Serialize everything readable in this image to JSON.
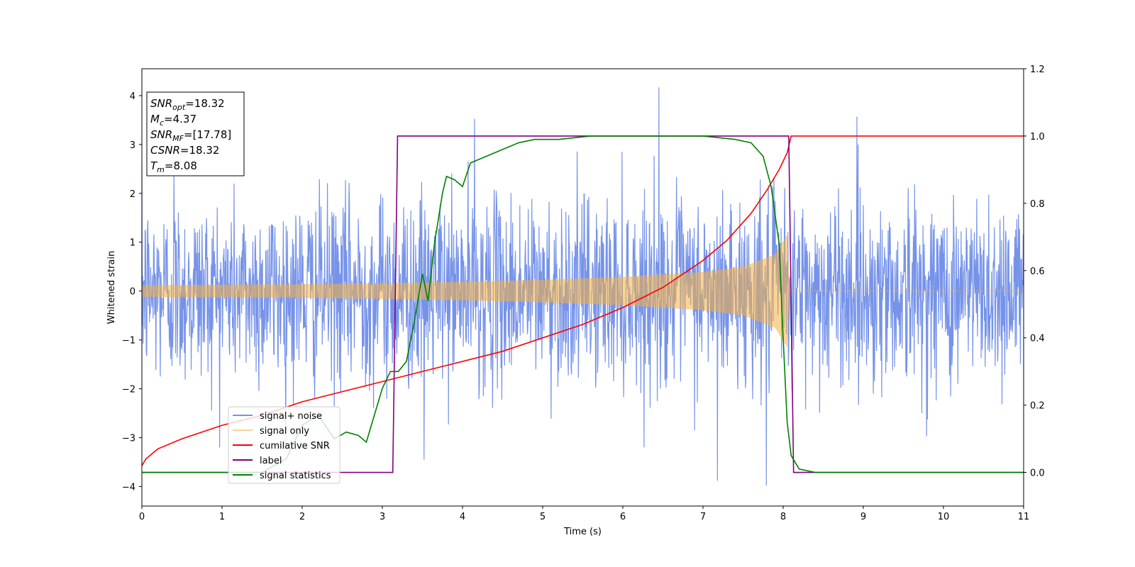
{
  "chart_data": {
    "type": "line",
    "title": "",
    "xlabel": "Time (s)",
    "ylabel": "Whitened strain",
    "ylabel_right": "",
    "xlim": [
      0,
      11
    ],
    "ylim": [
      -4.4,
      4.55
    ],
    "ylim_right": [
      -0.1,
      1.2
    ],
    "x_ticks": [
      0,
      1,
      2,
      3,
      4,
      5,
      6,
      7,
      8,
      9,
      10,
      11
    ],
    "y_ticks": [
      -4,
      -3,
      -2,
      -1,
      0,
      1,
      2,
      3,
      4
    ],
    "y_ticks_right": [
      0.0,
      0.2,
      0.4,
      0.6,
      0.8,
      1.0,
      1.2
    ],
    "x_tick_labels": [
      "0",
      "1",
      "2",
      "3",
      "4",
      "5",
      "6",
      "7",
      "8",
      "9",
      "10",
      "11"
    ],
    "y_tick_labels": [
      "−4",
      "−3",
      "−2",
      "−1",
      "0",
      "1",
      "2",
      "3",
      "4"
    ],
    "y_tick_labels_right": [
      "0.0",
      "0.2",
      "0.4",
      "0.6",
      "0.8",
      "1.0",
      "1.2"
    ],
    "grid": false,
    "legend_position": "lower-left",
    "annotation": {
      "lines": [
        {
          "base": "SNR",
          "sub": "opt",
          "rest": "=18.32"
        },
        {
          "base": "M",
          "sub": "c",
          "rest": "=4.37"
        },
        {
          "base": "SNR",
          "sub": "MF",
          "rest": "=[17.78]"
        },
        {
          "base": "CSNR",
          "sub": "",
          "rest": "=18.32"
        },
        {
          "base": "T",
          "sub": "m",
          "rest": "=8.08"
        }
      ]
    },
    "series": [
      {
        "name": "signal+ noise",
        "axis": "left",
        "color": "#4169e1",
        "x_range": [
          0,
          11
        ],
        "samples": 2200,
        "noise_std": 0.95,
        "peaks": [
          [
            0.4,
            2.4
          ],
          [
            4.15,
            3.52
          ],
          [
            6.45,
            4.17
          ],
          [
            8.92,
            3.57
          ],
          [
            7.18,
            -3.88
          ],
          [
            7.79,
            -3.98
          ],
          [
            3.52,
            -3.45
          ]
        ]
      },
      {
        "name": "signal only",
        "axis": "left",
        "color": "#f5b041",
        "x_range": [
          0,
          11
        ],
        "envelope": [
          [
            0,
            0.12
          ],
          [
            1,
            0.13
          ],
          [
            2,
            0.14
          ],
          [
            3,
            0.16
          ],
          [
            4,
            0.19
          ],
          [
            5,
            0.23
          ],
          [
            6,
            0.29
          ],
          [
            7,
            0.39
          ],
          [
            7.5,
            0.5
          ],
          [
            7.9,
            0.75
          ],
          [
            8.05,
            1.15
          ],
          [
            8.08,
            0.0
          ],
          [
            11,
            0.0
          ]
        ]
      },
      {
        "name": "cumilative SNR",
        "axis": "right",
        "color": "#ff0000",
        "x": [
          0,
          0.05,
          0.2,
          0.5,
          1,
          1.5,
          2,
          2.5,
          3,
          3.5,
          4,
          4.5,
          5,
          5.5,
          6,
          6.5,
          7,
          7.3,
          7.6,
          7.8,
          7.95,
          8.05,
          8.1,
          11
        ],
        "values": [
          0.02,
          0.04,
          0.07,
          0.1,
          0.14,
          0.17,
          0.21,
          0.24,
          0.27,
          0.3,
          0.33,
          0.36,
          0.4,
          0.44,
          0.49,
          0.55,
          0.63,
          0.69,
          0.77,
          0.84,
          0.9,
          0.95,
          1.0,
          1.0
        ]
      },
      {
        "name": "label",
        "axis": "right",
        "color": "#800080",
        "x": [
          0,
          3.13,
          3.19,
          8.07,
          8.13,
          11
        ],
        "values": [
          0.0,
          0.0,
          1.0,
          1.0,
          0.0,
          0.0
        ]
      },
      {
        "name": "signal statistics",
        "axis": "right",
        "color": "#008000",
        "x": [
          0,
          1.5,
          1.8,
          2.0,
          2.2,
          2.4,
          2.55,
          2.7,
          2.8,
          2.9,
          3.0,
          3.1,
          3.2,
          3.3,
          3.4,
          3.5,
          3.57,
          3.65,
          3.75,
          3.8,
          3.9,
          4.0,
          4.1,
          4.3,
          4.5,
          4.7,
          4.9,
          5.2,
          5.6,
          6.0,
          6.5,
          7.0,
          7.4,
          7.6,
          7.75,
          7.85,
          7.95,
          8.0,
          8.05,
          8.1,
          8.2,
          8.4,
          11
        ],
        "values": [
          0.0,
          0.0,
          0.04,
          0.14,
          0.17,
          0.1,
          0.12,
          0.11,
          0.09,
          0.17,
          0.25,
          0.3,
          0.3,
          0.33,
          0.45,
          0.59,
          0.51,
          0.68,
          0.83,
          0.88,
          0.87,
          0.85,
          0.92,
          0.94,
          0.96,
          0.98,
          0.99,
          0.99,
          1.0,
          1.0,
          1.0,
          1.0,
          0.99,
          0.98,
          0.94,
          0.85,
          0.68,
          0.4,
          0.15,
          0.05,
          0.01,
          0.0,
          0.0
        ]
      }
    ]
  }
}
